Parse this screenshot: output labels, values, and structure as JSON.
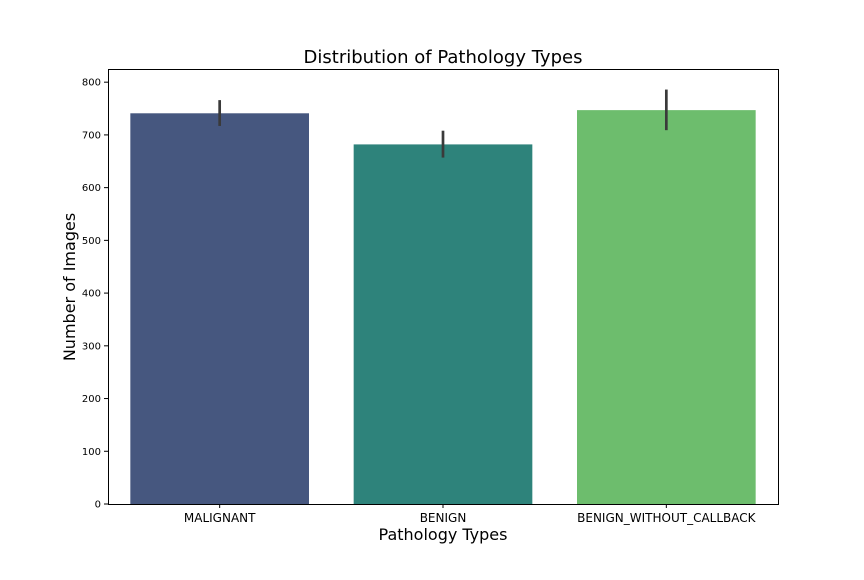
{
  "chart_data": {
    "type": "bar",
    "title": "Distribution of Pathology Types",
    "xlabel": "Pathology Types",
    "ylabel": "Number of Images",
    "categories": [
      "MALIGNANT",
      "BENIGN",
      "BENIGN_WITHOUT_CALLBACK"
    ],
    "values": [
      741,
      682,
      747
    ],
    "error_low": [
      717,
      657,
      709
    ],
    "error_high": [
      766,
      708,
      786
    ],
    "ylim": [
      0,
      825
    ],
    "yticks": [
      0,
      100,
      200,
      300,
      400,
      500,
      600,
      700,
      800
    ],
    "ytick_labels": [
      "0",
      "100",
      "200",
      "300",
      "400",
      "500",
      "600",
      "700",
      "800"
    ],
    "colors": [
      "#46577f",
      "#2e837b",
      "#6dbd6d"
    ],
    "errorbar_color": "#3a3a3a",
    "grid": false,
    "legend": "none"
  }
}
